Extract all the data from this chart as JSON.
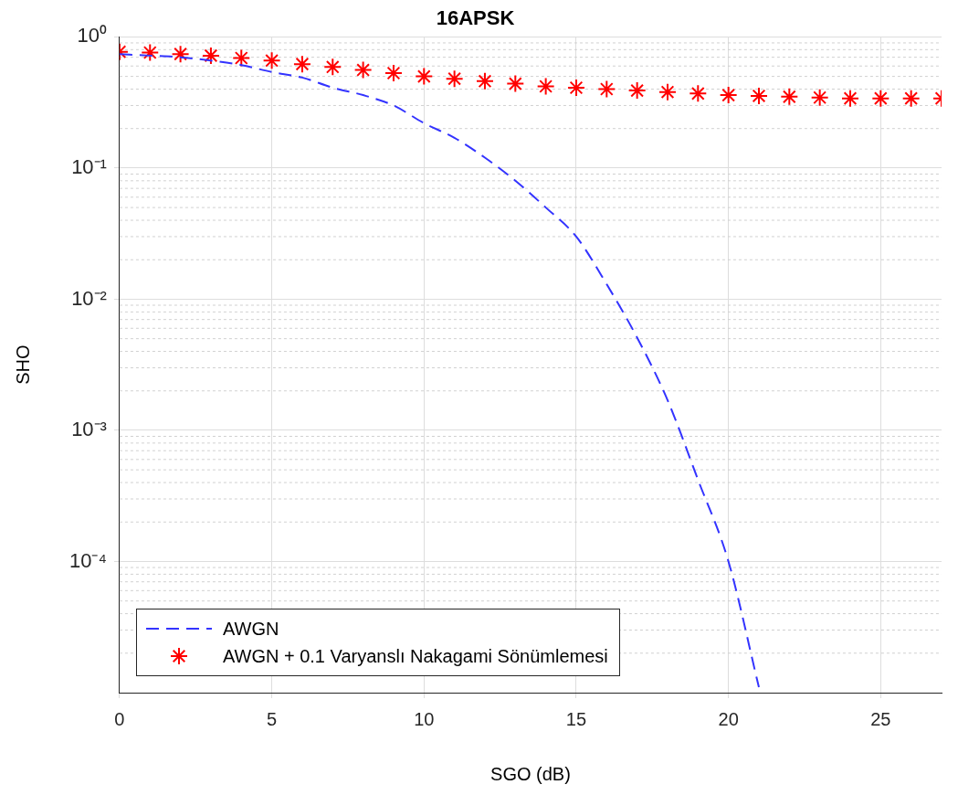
{
  "chart_data": {
    "type": "line",
    "title": "16APSK",
    "xlabel": "SGO (dB)",
    "ylabel": "SHO",
    "log": "y",
    "grid": true,
    "legend": "bottom left",
    "xlim": [
      0,
      27
    ],
    "xticks": [
      0,
      5,
      10,
      15,
      20,
      25
    ],
    "ylim": [
      1e-05,
      1
    ],
    "yticks": [
      {
        "value": 1,
        "label": "10⁰"
      },
      {
        "value": 0.1,
        "label": "10⁻¹"
      },
      {
        "value": 0.01,
        "label": "10⁻²"
      },
      {
        "value": 0.001,
        "label": "10⁻³"
      },
      {
        "value": 0.0001,
        "label": "10⁻⁴"
      }
    ],
    "series": [
      {
        "name": "AWGN",
        "type": "line",
        "color": "#3333ff",
        "marker": "none",
        "line_style": "dashed",
        "x": [
          0,
          1,
          2,
          3,
          4,
          5,
          6,
          7,
          8,
          9,
          10,
          11,
          12,
          13,
          14,
          15,
          16,
          17,
          18,
          19,
          20,
          21
        ],
        "values": [
          0.74,
          0.72,
          0.7,
          0.66,
          0.61,
          0.54,
          0.49,
          0.41,
          0.36,
          0.3,
          0.22,
          0.17,
          0.12,
          0.08,
          0.05,
          0.03,
          0.013,
          0.0051,
          0.0017,
          0.00042,
          0.0001,
          1.1e-05
        ]
      },
      {
        "name": "AWGN + 0.1 Varyanslı Nakagami Sönümlemesi",
        "type": "scatter",
        "color": "#ff0000",
        "marker": "cross",
        "x": [
          0,
          1,
          2,
          3,
          4,
          5,
          6,
          7,
          8,
          9,
          10,
          11,
          12,
          13,
          14,
          15,
          16,
          17,
          18,
          19,
          20,
          21,
          22,
          23,
          24,
          25,
          26,
          27
        ],
        "values": [
          0.77,
          0.76,
          0.74,
          0.72,
          0.69,
          0.66,
          0.62,
          0.59,
          0.56,
          0.53,
          0.5,
          0.48,
          0.46,
          0.44,
          0.42,
          0.41,
          0.4,
          0.39,
          0.38,
          0.37,
          0.36,
          0.355,
          0.35,
          0.345,
          0.34,
          0.34,
          0.34,
          0.34
        ]
      }
    ]
  }
}
